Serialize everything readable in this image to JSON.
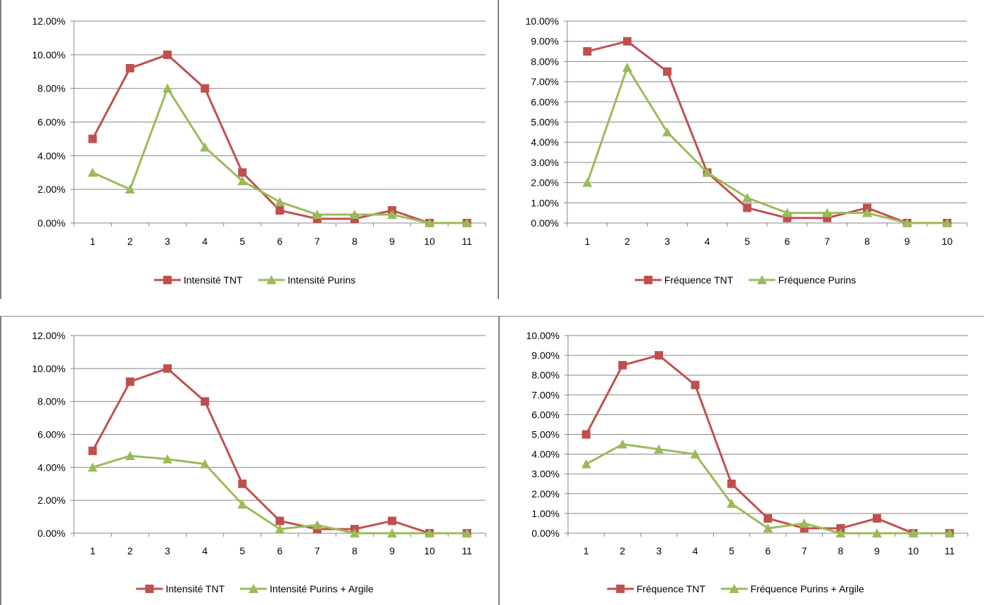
{
  "colors": {
    "red": "#c0504d",
    "green": "#9bbb59",
    "grid": "#868686",
    "axis": "#868686"
  },
  "chart_data": [
    {
      "type": "line",
      "categories": [
        "1",
        "2",
        "3",
        "4",
        "5",
        "6",
        "7",
        "8",
        "9",
        "10",
        "11"
      ],
      "ylim": [
        0,
        0.12
      ],
      "y_ticks": [
        "0.00%",
        "2.00%",
        "4.00%",
        "6.00%",
        "8.00%",
        "10.00%",
        "12.00%"
      ],
      "grid": true,
      "legend": "bottom",
      "series": [
        {
          "name": "Intensité TNT",
          "marker": "square",
          "color": "#c0504d",
          "values": [
            0.05,
            0.092,
            0.1,
            0.08,
            0.03,
            0.0075,
            0.0025,
            0.0025,
            0.0075,
            0.0,
            0.0
          ]
        },
        {
          "name": "Intensité Purins",
          "marker": "triangle",
          "color": "#9bbb59",
          "values": [
            0.03,
            0.02,
            0.08,
            0.045,
            0.025,
            0.0125,
            0.005,
            0.005,
            0.005,
            0.0,
            0.0
          ]
        }
      ]
    },
    {
      "type": "line",
      "categories": [
        "1",
        "2",
        "3",
        "4",
        "5",
        "6",
        "7",
        "8",
        "9",
        "10"
      ],
      "ylim": [
        0,
        0.1
      ],
      "y_ticks": [
        "0.00%",
        "1.00%",
        "2.00%",
        "3.00%",
        "4.00%",
        "5.00%",
        "6.00%",
        "7.00%",
        "8.00%",
        "9.00%",
        "10.00%"
      ],
      "grid": true,
      "legend": "bottom",
      "series": [
        {
          "name": "Fréquence TNT",
          "marker": "square",
          "color": "#c0504d",
          "values": [
            0.085,
            0.09,
            0.075,
            0.025,
            0.0075,
            0.0025,
            0.0025,
            0.0075,
            0.0,
            0.0
          ]
        },
        {
          "name": "Fréquence Purins",
          "marker": "triangle",
          "color": "#9bbb59",
          "values": [
            0.02,
            0.077,
            0.045,
            0.025,
            0.0125,
            0.005,
            0.005,
            0.005,
            0.0,
            0.0
          ]
        }
      ]
    },
    {
      "type": "line",
      "categories": [
        "1",
        "2",
        "3",
        "4",
        "5",
        "6",
        "7",
        "8",
        "9",
        "10",
        "11"
      ],
      "ylim": [
        0,
        0.12
      ],
      "y_ticks": [
        "0.00%",
        "2.00%",
        "4.00%",
        "6.00%",
        "8.00%",
        "10.00%",
        "12.00%"
      ],
      "grid": true,
      "legend": "bottom",
      "series": [
        {
          "name": "Intensité TNT",
          "marker": "square",
          "color": "#c0504d",
          "values": [
            0.05,
            0.092,
            0.1,
            0.08,
            0.03,
            0.0075,
            0.0025,
            0.0025,
            0.0075,
            0.0,
            0.0
          ]
        },
        {
          "name": "Intensité Purins + Argile",
          "marker": "triangle",
          "color": "#9bbb59",
          "values": [
            0.04,
            0.047,
            0.045,
            0.042,
            0.0175,
            0.0025,
            0.005,
            0.0,
            0.0,
            0.0,
            0.0
          ]
        }
      ]
    },
    {
      "type": "line",
      "categories": [
        "1",
        "2",
        "3",
        "4",
        "5",
        "6",
        "7",
        "8",
        "9",
        "10",
        "11"
      ],
      "ylim": [
        0,
        0.1
      ],
      "y_ticks": [
        "0.00%",
        "1.00%",
        "2.00%",
        "3.00%",
        "4.00%",
        "5.00%",
        "6.00%",
        "7.00%",
        "8.00%",
        "9.00%",
        "10.00%"
      ],
      "grid": true,
      "legend": "bottom",
      "series": [
        {
          "name": "Fréquence TNT",
          "marker": "square",
          "color": "#c0504d",
          "values": [
            0.05,
            0.085,
            0.09,
            0.075,
            0.025,
            0.0075,
            0.0025,
            0.0025,
            0.0075,
            0.0,
            0.0
          ]
        },
        {
          "name": "Fréquence Purins + Argile",
          "marker": "triangle",
          "color": "#9bbb59",
          "values": [
            0.035,
            0.045,
            0.0425,
            0.04,
            0.015,
            0.0025,
            0.005,
            0.0,
            0.0,
            0.0,
            0.0
          ]
        }
      ]
    }
  ]
}
